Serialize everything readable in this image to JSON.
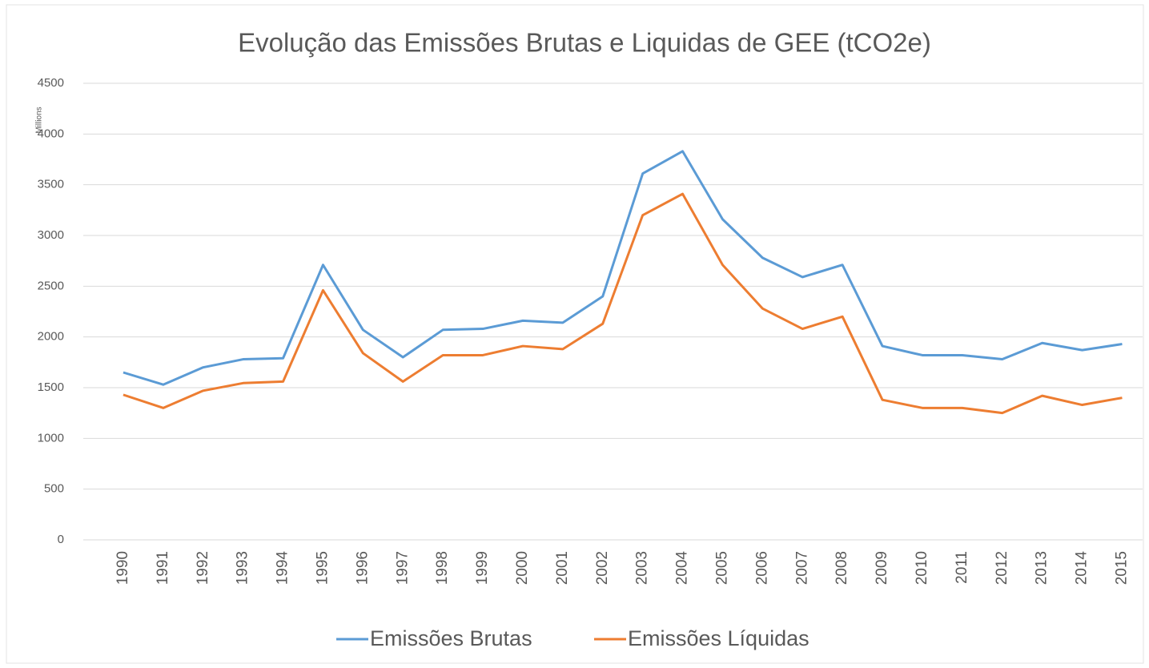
{
  "chart_data": {
    "type": "line",
    "title": "Evolução das Emissões Brutas e Liquidas de GEE (tCO2e)",
    "y_unit_label": "Millions",
    "categories": [
      "1990",
      "1991",
      "1992",
      "1993",
      "1994",
      "1995",
      "1996",
      "1997",
      "1998",
      "1999",
      "2000",
      "2001",
      "2002",
      "2003",
      "2004",
      "2005",
      "2006",
      "2007",
      "2008",
      "2009",
      "2010",
      "2011",
      "2012",
      "2013",
      "2014",
      "2015"
    ],
    "series": [
      {
        "name": "Emissões Brutas",
        "color": "#5b9bd5",
        "values": [
          1650,
          1530,
          1700,
          1780,
          1790,
          2710,
          2070,
          1800,
          2070,
          2080,
          2160,
          2140,
          2400,
          3610,
          3830,
          3160,
          2780,
          2590,
          2710,
          1910,
          1820,
          1820,
          1780,
          1940,
          1870,
          1930
        ]
      },
      {
        "name": "Emissões Líquidas",
        "color": "#ed7d31",
        "values": [
          1430,
          1300,
          1470,
          1545,
          1560,
          2460,
          1840,
          1560,
          1820,
          1820,
          1910,
          1880,
          2130,
          3200,
          3410,
          2710,
          2280,
          2080,
          2200,
          1380,
          1300,
          1300,
          1250,
          1420,
          1330,
          1400
        ]
      }
    ],
    "ylim": [
      0,
      4500
    ],
    "yticks": [
      0,
      500,
      1000,
      1500,
      2000,
      2500,
      3000,
      3500,
      4000,
      4500
    ],
    "grid": true,
    "legend": "bottom"
  }
}
